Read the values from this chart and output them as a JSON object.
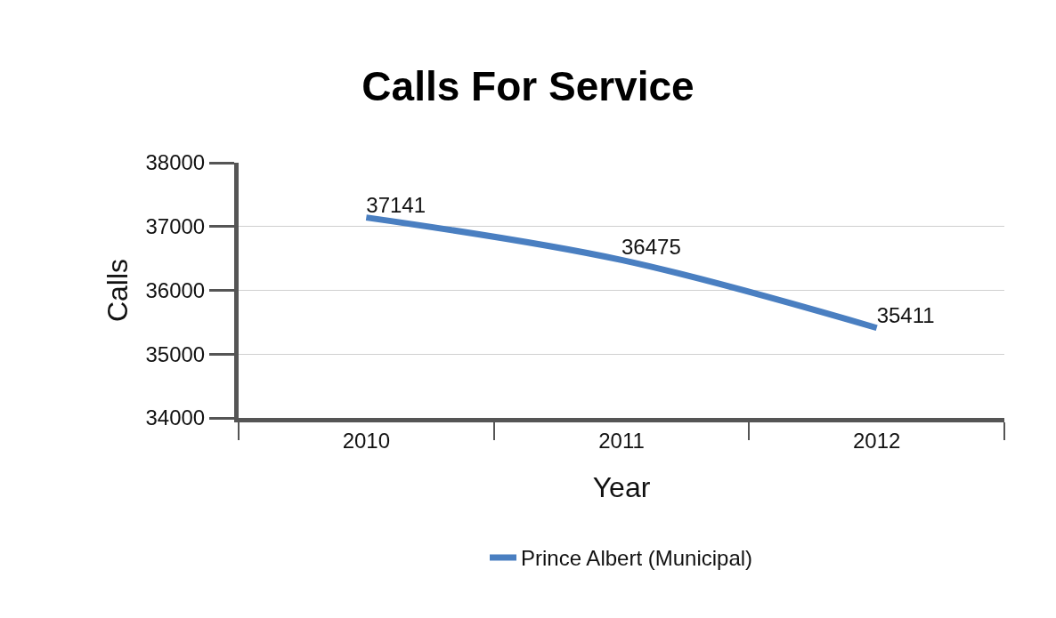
{
  "chart_data": {
    "type": "line",
    "title": "Calls For Service",
    "xlabel": "Year",
    "ylabel": "Calls",
    "categories": [
      "2010",
      "2011",
      "2012"
    ],
    "series": [
      {
        "name": "Prince Albert (Municipal)",
        "color": "#4a7fc1",
        "values": [
          37141,
          36475,
          35411
        ]
      }
    ],
    "ylim": [
      34000,
      38000
    ],
    "yticks": [
      34000,
      35000,
      36000,
      37000,
      38000
    ],
    "grid": "y",
    "legend": "bottom",
    "data_labels": true,
    "marker": "none",
    "line_style": "solid"
  }
}
